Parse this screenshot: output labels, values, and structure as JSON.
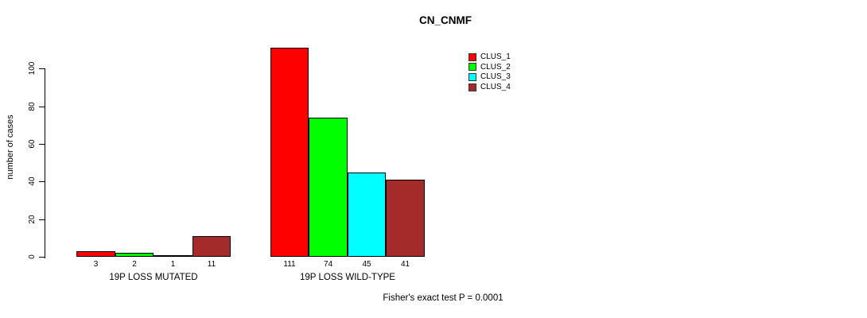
{
  "chart_data": {
    "type": "bar",
    "title": "CN_CNMF",
    "ylabel": "number of cases",
    "xlabel": "",
    "yticks": [
      0,
      20,
      40,
      60,
      80,
      100
    ],
    "ylim": [
      0,
      111
    ],
    "grid": false,
    "legend_position": "top-right",
    "bar_value_labels_shown": true,
    "categories": [
      "19P LOSS MUTATED",
      "19P LOSS WILD-TYPE"
    ],
    "series": [
      {
        "name": "CLUS_1",
        "color": "#FF0000",
        "values": [
          3,
          111
        ]
      },
      {
        "name": "CLUS_2",
        "color": "#00FF00",
        "values": [
          2,
          74
        ]
      },
      {
        "name": "CLUS_3",
        "color": "#00FFFF",
        "values": [
          1,
          45
        ]
      },
      {
        "name": "CLUS_4",
        "color": "#A52A2A",
        "values": [
          11,
          41
        ]
      }
    ],
    "footnote": "Fisher's exact test P = 0.0001",
    "axis_color": "#000000"
  }
}
